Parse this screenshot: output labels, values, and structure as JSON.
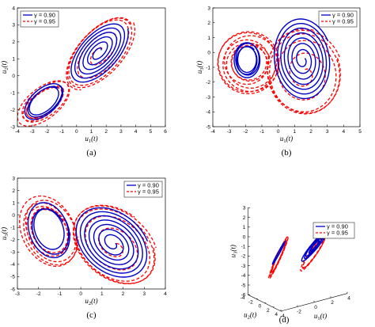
{
  "chart_data": [
    {
      "id": "a",
      "type": "line",
      "panel_label": "(a)",
      "xlabel": "u1(t)",
      "ylabel": "u2(t)",
      "xlim": [
        -4,
        6
      ],
      "ylim": [
        -3,
        4
      ],
      "xticks": [
        -4,
        -3,
        -2,
        -1,
        0,
        1,
        2,
        3,
        4,
        5,
        6
      ],
      "yticks": [
        -3,
        -2,
        -1,
        0,
        1,
        2,
        3,
        4
      ],
      "legend_position": "top-left",
      "series": [
        {
          "name": "γ = 0.90",
          "color": "#0000c8",
          "style": "solid",
          "attractor": {
            "type": "double-scroll",
            "lobe1": {
              "cx": 1.5,
              "cy": 1.4,
              "rx": 2.0,
              "ry": 1.5
            },
            "lobe2": {
              "cx": -2.2,
              "cy": -1.5,
              "rx": 1.3,
              "ry": 0.9
            }
          }
        },
        {
          "name": "γ = 0.95",
          "color": "#ff0000",
          "style": "dashed",
          "attractor": {
            "type": "double-scroll",
            "lobe1": {
              "cx": 1.6,
              "cy": 1.4,
              "rx": 2.4,
              "ry": 1.8
            },
            "lobe2": {
              "cx": -2.2,
              "cy": -1.6,
              "rx": 1.8,
              "ry": 1.1
            }
          }
        }
      ]
    },
    {
      "id": "b",
      "type": "line",
      "panel_label": "(b)",
      "xlabel": "u1(t)",
      "ylabel": "u3(t)",
      "xlim": [
        -4,
        5
      ],
      "ylim": [
        -5,
        3
      ],
      "xticks": [
        -4,
        -3,
        -2,
        -1,
        0,
        1,
        2,
        3,
        4,
        5
      ],
      "yticks": [
        -5,
        -4,
        -3,
        -2,
        -1,
        0,
        1,
        2,
        3
      ],
      "legend_position": "top-right",
      "series": [
        {
          "name": "γ = 0.90",
          "color": "#0000c8",
          "style": "solid",
          "attractor": {
            "type": "double-scroll",
            "lobe1": {
              "cx": 1.5,
              "cy": -0.5,
              "rx": 1.8,
              "ry": 2.8
            },
            "lobe2": {
              "cx": -1.9,
              "cy": -0.5,
              "rx": 0.8,
              "ry": 1.2
            }
          }
        },
        {
          "name": "γ = 0.95",
          "color": "#ff0000",
          "style": "dashed",
          "attractor": {
            "type": "double-scroll",
            "lobe1": {
              "cx": 1.6,
              "cy": -1.4,
              "rx": 2.4,
              "ry": 3.0
            },
            "lobe2": {
              "cx": -1.8,
              "cy": -0.7,
              "rx": 1.9,
              "ry": 2.1
            }
          }
        }
      ]
    },
    {
      "id": "c",
      "type": "line",
      "panel_label": "(c)",
      "xlabel": "u2(t)",
      "ylabel": "u3(t)",
      "xlim": [
        -3,
        4
      ],
      "ylim": [
        -6,
        3
      ],
      "xticks": [
        -3,
        -2,
        -1,
        0,
        1,
        2,
        3,
        4
      ],
      "yticks": [
        -6,
        -5,
        -4,
        -3,
        -2,
        -1,
        0,
        1,
        2,
        3
      ],
      "legend_position": "top-right",
      "series": [
        {
          "name": "γ = 0.90",
          "color": "#0000c8",
          "style": "solid",
          "attractor": {
            "type": "double-scroll",
            "lobe1": {
              "cx": 1.5,
              "cy": -2.3,
              "rx": 1.8,
              "ry": 2.8
            },
            "lobe2": {
              "cx": -1.5,
              "cy": -1.2,
              "rx": 1.0,
              "ry": 2.2
            }
          }
        },
        {
          "name": "γ = 0.95",
          "color": "#ff0000",
          "style": "dashed",
          "attractor": {
            "type": "double-scroll",
            "lobe1": {
              "cx": 1.6,
              "cy": -2.5,
              "rx": 2.1,
              "ry": 3.2
            },
            "lobe2": {
              "cx": -1.5,
              "cy": -1.3,
              "rx": 1.4,
              "ry": 2.8
            }
          }
        }
      ]
    },
    {
      "id": "d",
      "type": "line",
      "panel_label": "(d)",
      "view": "3d",
      "xlabel": "u1(t)",
      "ylabel": "u2(t)",
      "zlabel": "u3(t)",
      "xticks": [
        -4,
        -2,
        0,
        2,
        4
      ],
      "yticks": [
        -4,
        -2,
        0,
        2,
        4
      ],
      "zticks": [
        -6,
        -5,
        -4,
        -3,
        -2,
        -1,
        0,
        1,
        2,
        3
      ],
      "zlim": [
        -6,
        3
      ],
      "legend_position": "right",
      "series": [
        {
          "name": "γ = 0.90",
          "color": "#0000c8",
          "style": "solid"
        },
        {
          "name": "γ = 0.95",
          "color": "#ff0000",
          "style": "dashed"
        }
      ]
    }
  ]
}
